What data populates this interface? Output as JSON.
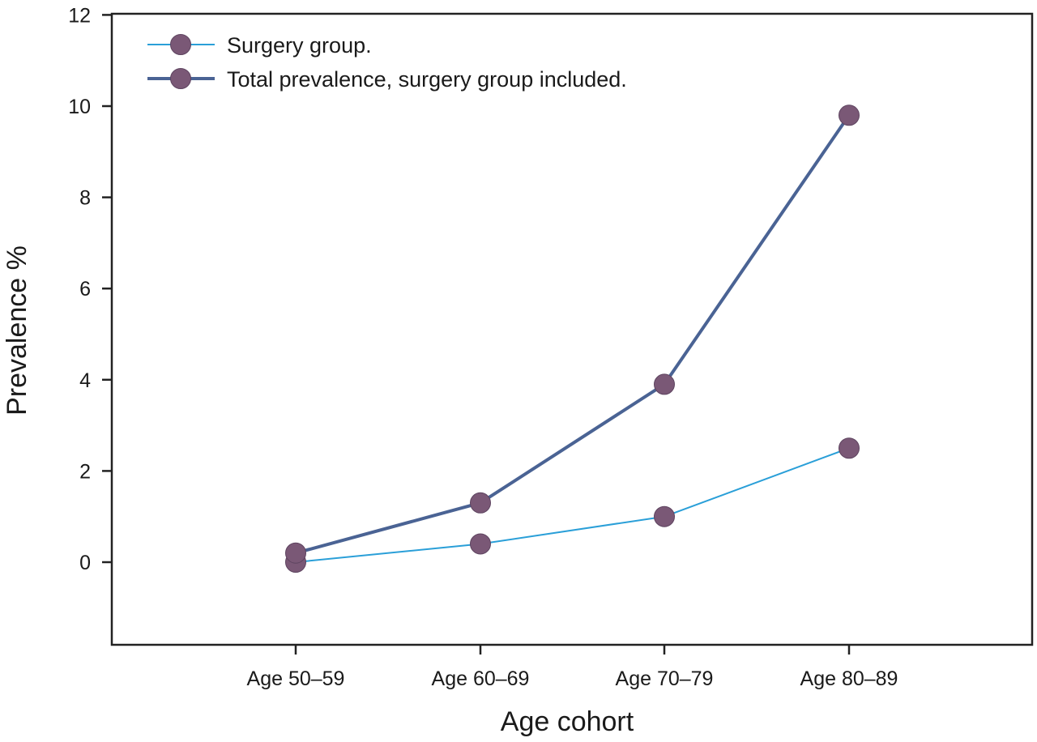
{
  "chart_data": {
    "type": "line",
    "title": "",
    "xlabel": "Age cohort",
    "ylabel": "Prevalence %",
    "categories": [
      "Age 50–59",
      "Age 60–69",
      "Age 70–79",
      "Age 80–89"
    ],
    "ylim": [
      -1.8,
      12
    ],
    "yticks": [
      0,
      2,
      4,
      6,
      8,
      10,
      12
    ],
    "grid": false,
    "legend_position": "top-left",
    "series": [
      {
        "name": "Surgery group.",
        "values": [
          0,
          0.4,
          1.0,
          2.5
        ],
        "line_color": "#2a9fd8",
        "marker_color": "#7a5876"
      },
      {
        "name": "Total prevalence, surgery group included.",
        "values": [
          0.2,
          1.3,
          3.9,
          9.8
        ],
        "line_color": "#4a6394",
        "marker_color": "#7a5876"
      }
    ]
  }
}
